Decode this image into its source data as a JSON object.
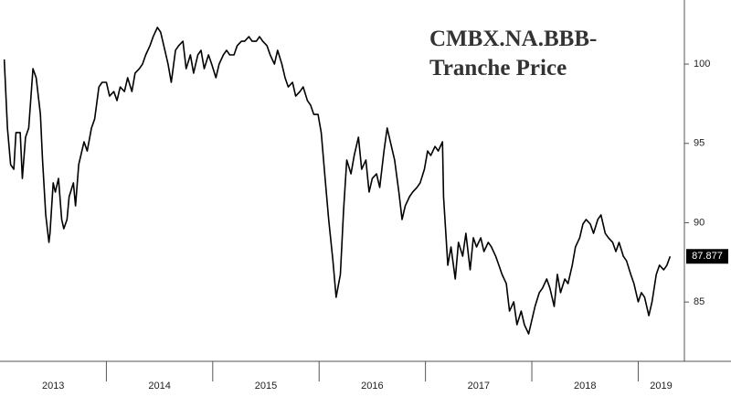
{
  "chart_data": {
    "type": "line",
    "title_lines": [
      "CMBX.NA.BBB-",
      "Tranche Price"
    ],
    "x": [
      2013.04,
      2013.07,
      2013.1,
      2013.13,
      2013.15,
      2013.19,
      2013.21,
      2013.24,
      2013.27,
      2013.31,
      2013.34,
      2013.38,
      2013.4,
      2013.43,
      2013.46,
      2013.47,
      2013.5,
      2013.52,
      2013.55,
      2013.58,
      2013.6,
      2013.63,
      2013.65,
      2013.69,
      2013.71,
      2013.74,
      2013.76,
      2013.79,
      2013.82,
      2013.86,
      2013.89,
      2013.93,
      2013.96,
      2014.0,
      2014.03,
      2014.07,
      2014.1,
      2014.13,
      2014.17,
      2014.2,
      2014.24,
      2014.27,
      2014.31,
      2014.34,
      2014.37,
      2014.41,
      2014.44,
      2014.48,
      2014.51,
      2014.55,
      2014.58,
      2014.61,
      2014.65,
      2014.68,
      2014.72,
      2014.75,
      2014.79,
      2014.82,
      2014.86,
      2014.89,
      2014.92,
      2014.96,
      2014.99,
      2015.03,
      2015.06,
      2015.1,
      2015.13,
      2015.16,
      2015.2,
      2015.23,
      2015.27,
      2015.3,
      2015.34,
      2015.37,
      2015.41,
      2015.44,
      2015.47,
      2015.51,
      2015.54,
      2015.58,
      2015.61,
      2015.65,
      2015.68,
      2015.71,
      2015.75,
      2015.78,
      2015.82,
      2015.85,
      2015.89,
      2015.92,
      2015.95,
      2015.99,
      2016.02,
      2016.06,
      2016.09,
      2016.13,
      2016.16,
      2016.2,
      2016.23,
      2016.26,
      2016.3,
      2016.33,
      2016.37,
      2016.4,
      2016.44,
      2016.47,
      2016.5,
      2016.54,
      2016.57,
      2016.61,
      2016.64,
      2016.68,
      2016.71,
      2016.75,
      2016.78,
      2016.81,
      2016.85,
      2016.88,
      2016.92,
      2016.95,
      2016.99,
      2017.02,
      2017.05,
      2017.09,
      2017.12,
      2017.16,
      2017.17,
      2017.21,
      2017.24,
      2017.28,
      2017.31,
      2017.35,
      2017.38,
      2017.42,
      2017.45,
      2017.48,
      2017.52,
      2017.55,
      2017.59,
      2017.62,
      2017.66,
      2017.69,
      2017.72,
      2017.76,
      2017.79,
      2017.83,
      2017.86,
      2017.9,
      2017.93,
      2017.97,
      2018.0,
      2018.03,
      2018.07,
      2018.1,
      2018.14,
      2018.17,
      2018.21,
      2018.24,
      2018.27,
      2018.31,
      2018.34,
      2018.38,
      2018.41,
      2018.45,
      2018.48,
      2018.51,
      2018.55,
      2018.58,
      2018.62,
      2018.65,
      2018.69,
      2018.72,
      2018.76,
      2018.79,
      2018.82,
      2018.86,
      2018.89,
      2018.93,
      2018.96,
      2019.0,
      2019.03,
      2019.06,
      2019.1,
      2019.13,
      2019.17,
      2019.2,
      2019.24,
      2019.27,
      2019.3
    ],
    "series": [
      {
        "color": "#000000",
        "values": [
          100.29,
          95.97,
          93.66,
          93.37,
          95.68,
          95.68,
          92.79,
          95.39,
          95.97,
          99.71,
          99.14,
          96.83,
          93.95,
          90.49,
          88.76,
          89.33,
          92.51,
          91.93,
          92.79,
          90.2,
          89.62,
          90.2,
          91.64,
          92.51,
          91.06,
          93.66,
          94.24,
          95.1,
          94.52,
          95.97,
          96.54,
          98.56,
          98.85,
          98.85,
          97.98,
          98.27,
          97.7,
          98.56,
          98.27,
          99.14,
          98.27,
          99.43,
          99.71,
          100.0,
          100.58,
          101.16,
          101.73,
          102.31,
          102.02,
          100.87,
          100.0,
          98.85,
          100.87,
          101.16,
          101.44,
          99.71,
          100.58,
          99.43,
          100.58,
          100.87,
          99.71,
          100.58,
          100.0,
          99.14,
          100.0,
          100.58,
          100.87,
          100.58,
          100.58,
          101.16,
          101.44,
          101.44,
          101.73,
          101.44,
          101.44,
          101.73,
          101.44,
          101.16,
          100.58,
          100.0,
          100.87,
          100.0,
          99.14,
          98.56,
          98.85,
          97.98,
          98.27,
          98.56,
          97.7,
          97.41,
          96.83,
          96.83,
          95.68,
          92.51,
          90.2,
          87.6,
          85.3,
          86.74,
          90.78,
          93.95,
          93.08,
          94.24,
          95.39,
          93.37,
          93.95,
          91.93,
          92.79,
          93.08,
          92.22,
          94.52,
          95.97,
          94.81,
          93.95,
          91.93,
          90.2,
          91.06,
          91.64,
          91.93,
          92.22,
          92.51,
          93.37,
          94.52,
          94.24,
          94.81,
          94.52,
          95.1,
          91.64,
          87.32,
          88.47,
          86.45,
          88.76,
          87.89,
          89.33,
          87.03,
          89.05,
          88.47,
          89.05,
          88.18,
          88.76,
          88.47,
          87.89,
          87.32,
          86.74,
          86.16,
          84.43,
          85.01,
          83.57,
          84.43,
          83.57,
          82.99,
          83.86,
          84.72,
          85.59,
          85.87,
          86.45,
          85.87,
          84.72,
          86.74,
          85.59,
          86.45,
          86.16,
          87.32,
          88.47,
          89.05,
          89.91,
          90.2,
          89.91,
          89.33,
          90.2,
          90.49,
          89.33,
          89.05,
          88.76,
          88.18,
          88.76,
          87.89,
          87.6,
          86.74,
          86.16,
          85.01,
          85.59,
          85.3,
          84.14,
          85.01,
          86.74,
          87.32,
          87.03,
          87.32,
          87.877
        ]
      }
    ],
    "xlim": [
      2013,
      2019.43
    ],
    "xticks": [
      2014,
      2015,
      2016,
      2017,
      2018,
      2019
    ],
    "x_labels": [
      "2013",
      "2014",
      "2015",
      "2016",
      "2017",
      "2018",
      "2019"
    ],
    "ylim": [
      81.26,
      104.04
    ],
    "yticks": [
      85,
      90,
      95,
      100
    ],
    "grid": false
  }
}
